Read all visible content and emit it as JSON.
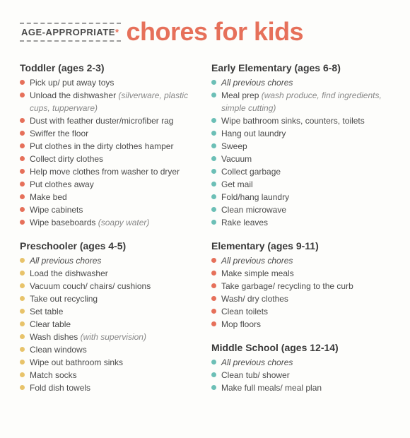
{
  "header": {
    "prefix": "AGE-APPROPRIATE",
    "asterisk": "*",
    "title": "chores for kids"
  },
  "colors": {
    "coral": "#e6705a",
    "mustard": "#e8c36a",
    "teal": "#6cbfb6"
  },
  "sections": [
    {
      "title": "Toddler (ages 2-3)",
      "bullet_color": "#e6705a",
      "column": "left",
      "items": [
        {
          "text": "Pick up/ put away toys"
        },
        {
          "text": "Unload the dishwasher",
          "paren": "(silverware, plastic cups, tupperware)"
        },
        {
          "text": "Dust with feather duster/microfiber rag"
        },
        {
          "text": "Swiffer the floor"
        },
        {
          "text": "Put clothes in the dirty clothes hamper"
        },
        {
          "text": "Collect dirty clothes"
        },
        {
          "text": "Help move clothes from washer to dryer"
        },
        {
          "text": "Put clothes away"
        },
        {
          "text": "Make bed"
        },
        {
          "text": "Wipe cabinets"
        },
        {
          "text": "Wipe baseboards",
          "paren": "(soapy water)"
        }
      ]
    },
    {
      "title": "Preschooler (ages 4-5)",
      "bullet_color": "#e8c36a",
      "column": "left",
      "items": [
        {
          "text": "All previous chores",
          "italic": true
        },
        {
          "text": "Load the dishwasher"
        },
        {
          "text": "Vacuum couch/ chairs/ cushions"
        },
        {
          "text": "Take out recycling"
        },
        {
          "text": "Set table"
        },
        {
          "text": "Clear table"
        },
        {
          "text": "Wash dishes",
          "paren": "(with supervision)"
        },
        {
          "text": "Clean windows"
        },
        {
          "text": "Wipe out bathroom sinks"
        },
        {
          "text": "Match socks"
        },
        {
          "text": "Fold dish towels"
        }
      ]
    },
    {
      "title": "Early Elementary (ages 6-8)",
      "bullet_color": "#6cbfb6",
      "column": "right",
      "items": [
        {
          "text": "All previous chores",
          "italic": true
        },
        {
          "text": "Meal prep",
          "paren": "(wash produce, find ingredients, simple cutting)"
        },
        {
          "text": "Wipe bathroom sinks, counters, toilets"
        },
        {
          "text": "Hang out laundry"
        },
        {
          "text": "Sweep"
        },
        {
          "text": "Vacuum"
        },
        {
          "text": "Collect garbage"
        },
        {
          "text": "Get mail"
        },
        {
          "text": "Fold/hang laundry"
        },
        {
          "text": "Clean microwave"
        },
        {
          "text": "Rake leaves"
        }
      ]
    },
    {
      "title": "Elementary (ages 9-11)",
      "bullet_color": "#e6705a",
      "column": "right",
      "items": [
        {
          "text": "All previous chores",
          "italic": true
        },
        {
          "text": "Make simple meals"
        },
        {
          "text": "Take garbage/ recycling to the curb"
        },
        {
          "text": "Wash/ dry clothes"
        },
        {
          "text": "Clean toilets"
        },
        {
          "text": "Mop floors"
        }
      ]
    },
    {
      "title": "Middle School (ages 12-14)",
      "bullet_color": "#6cbfb6",
      "column": "right",
      "items": [
        {
          "text": "All previous chores",
          "italic": true
        },
        {
          "text": "Clean tub/ shower"
        },
        {
          "text": "Make full meals/ meal plan"
        }
      ]
    }
  ]
}
